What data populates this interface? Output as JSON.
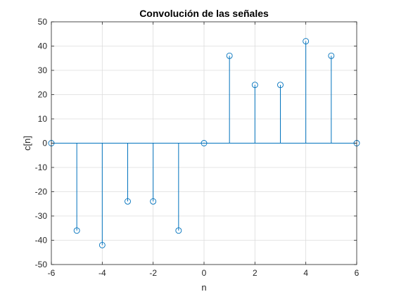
{
  "chart_data": {
    "type": "stem",
    "title": "Convolución de las señales",
    "xlabel": "n",
    "ylabel": "c[n]",
    "xlim": [
      -6,
      6
    ],
    "ylim": [
      -50,
      50
    ],
    "xticks": [
      -6,
      -4,
      -2,
      0,
      2,
      4,
      6
    ],
    "yticks": [
      -50,
      -40,
      -30,
      -20,
      -10,
      0,
      10,
      20,
      30,
      40,
      50
    ],
    "grid": true,
    "baseline": 0,
    "series": [
      {
        "x": [
          -6,
          -5,
          -4,
          -3,
          -2,
          -1,
          0,
          1,
          2,
          3,
          4,
          5,
          6
        ],
        "y": [
          0,
          -36,
          -42,
          -24,
          -24,
          -36,
          0,
          36,
          24,
          24,
          42,
          36,
          0
        ],
        "color": "#0072bd",
        "marker": "circle"
      }
    ]
  }
}
